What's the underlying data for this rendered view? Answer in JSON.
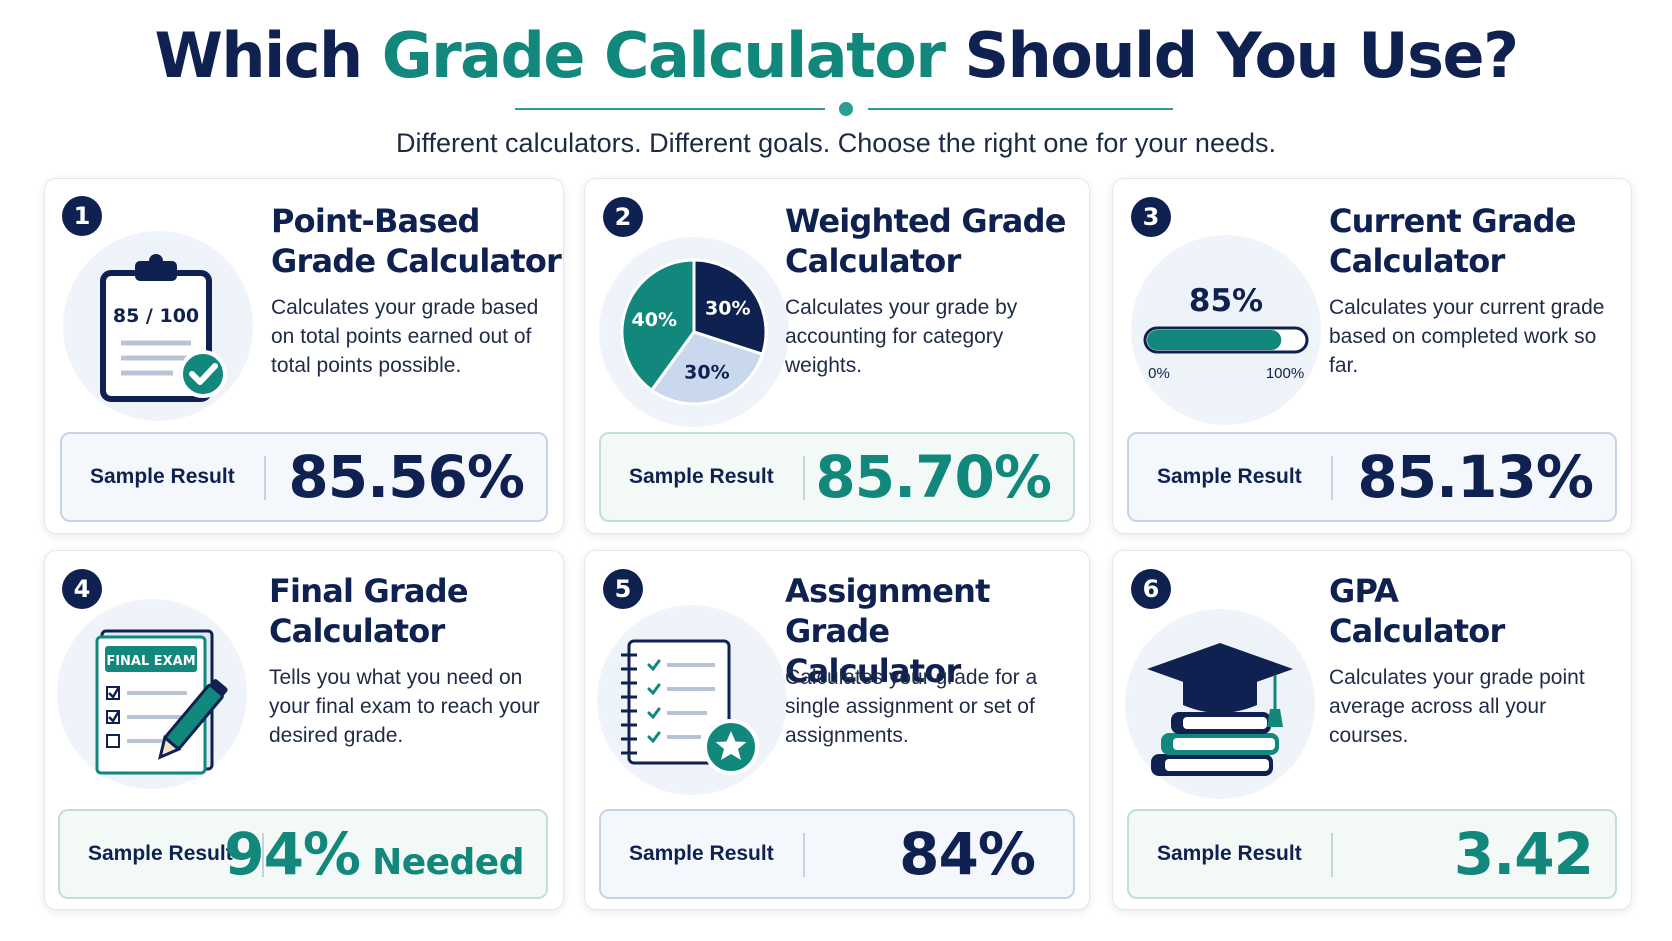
{
  "header": {
    "title_pre": "Which ",
    "title_accent": "Grade Calculator",
    "title_post": " Should You Use?",
    "subtitle": "Different calculators. Different goals. Choose the right one for your needs."
  },
  "colors": {
    "navy": "#0f2150",
    "teal": "#12877c",
    "light_teal": "#2b9d93"
  },
  "cards": [
    {
      "number": "1",
      "title": "Point-Based\nGrade Calculator",
      "description": "Calculates your grade based on total points earned out of total points possible.",
      "result_label": "Sample Result",
      "result_value": "85.56%",
      "illustration": {
        "icon": "clipboard-check-icon",
        "text": "85 / 100"
      }
    },
    {
      "number": "2",
      "title": "Weighted Grade\nCalculator",
      "description": "Calculates your grade by accounting for category weights.",
      "result_label": "Sample Result",
      "result_value": "85.70%",
      "illustration": {
        "icon": "pie-chart-icon",
        "slices": [
          {
            "label": "40%",
            "value": 40
          },
          {
            "label": "30%",
            "value": 30
          },
          {
            "label": "30%",
            "value": 30
          }
        ]
      }
    },
    {
      "number": "3",
      "title": "Current Grade\nCalculator",
      "description": "Calculates your current grade based on completed work so far.",
      "result_label": "Sample Result",
      "result_value": "85.13%",
      "illustration": {
        "icon": "progress-bar-icon",
        "value_label": "85%",
        "progress": 85,
        "min_label": "0%",
        "max_label": "100%"
      }
    },
    {
      "number": "4",
      "title": "Final Grade\nCalculator",
      "description": "Tells you what you need on your final exam to reach your desired grade.",
      "result_label": "Sample Result",
      "result_value": "94%",
      "result_suffix": " Needed",
      "illustration": {
        "icon": "final-exam-icon",
        "text": "FINAL EXAM"
      }
    },
    {
      "number": "5",
      "title": "Assignment Grade\nCalculator",
      "description": "Calculates your grade for a single assignment or set of assignments.",
      "result_label": "Sample Result",
      "result_value": "84%",
      "illustration": {
        "icon": "notebook-star-icon"
      }
    },
    {
      "number": "6",
      "title": "GPA\nCalculator",
      "description": "Calculates your grade point average across all your courses.",
      "result_label": "Sample Result",
      "result_value": "3.42",
      "illustration": {
        "icon": "graduation-cap-books-icon"
      }
    }
  ]
}
